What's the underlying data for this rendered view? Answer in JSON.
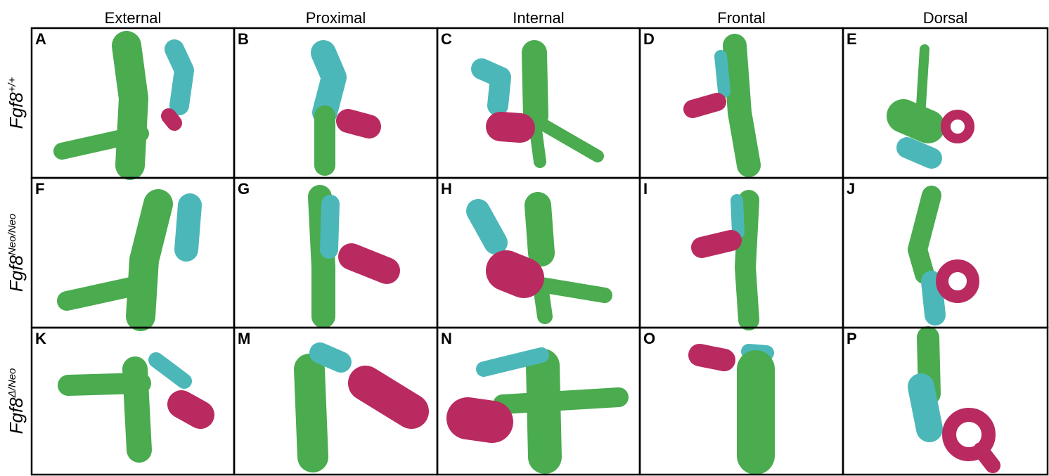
{
  "columns": [
    "External",
    "Proximal",
    "Internal",
    "Frontal",
    "Dorsal"
  ],
  "rows": [
    {
      "base": "Fgf8",
      "sup": "+/+"
    },
    {
      "base": "Fgf8",
      "sup": "Neo/Neo"
    },
    {
      "base": "Fgf8",
      "sup": "Δ/Neo"
    }
  ],
  "panels": [
    [
      "A",
      "B",
      "C",
      "D",
      "E"
    ],
    [
      "F",
      "G",
      "H",
      "I",
      "J"
    ],
    [
      "K",
      "M",
      "N",
      "O",
      "P"
    ]
  ]
}
